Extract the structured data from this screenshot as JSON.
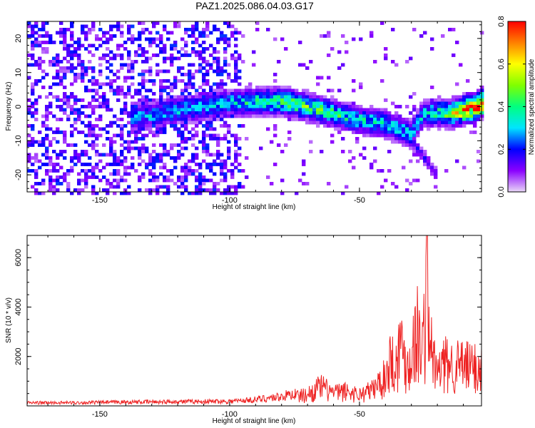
{
  "title": "PAZ1.2025.086.04.03.G17",
  "colorbar": {
    "label": "Normalized spectral amplitude",
    "range": [
      0,
      0.8
    ],
    "ticks": [
      "0.0",
      "0.2",
      "0.4",
      "0.6",
      "0.8"
    ],
    "colors": [
      "#e9d8f7",
      "#8a00ff",
      "#0000ff",
      "#00e5ff",
      "#00ff80",
      "#80ff00",
      "#ffff00",
      "#ff8000",
      "#ff0000"
    ]
  },
  "chart_data": [
    {
      "type": "heatmap",
      "xlabel": "Height of straight line (km)",
      "ylabel": "Frequency (Hz)",
      "xlim": [
        -178,
        -3
      ],
      "ylim": [
        -25,
        25
      ],
      "xticks": [
        -150,
        -100,
        -50
      ],
      "yticks": [
        -20,
        -10,
        0,
        10,
        20
      ],
      "ridge": {
        "x": [
          -135,
          -120,
          -110,
          -100,
          -90,
          -80,
          -70,
          -60,
          -50,
          -40,
          -30,
          -25,
          -20,
          -15,
          -10,
          -5,
          -3
        ],
        "frequency": [
          -3,
          -1,
          0,
          1,
          1.5,
          1.5,
          0,
          -2,
          -4,
          -5,
          -8,
          -2,
          -2,
          -2,
          -1,
          0,
          1
        ],
        "amplitude": [
          0.28,
          0.3,
          0.3,
          0.32,
          0.38,
          0.42,
          0.45,
          0.4,
          0.35,
          0.32,
          0.3,
          0.3,
          0.4,
          0.5,
          0.7,
          0.8,
          0.75
        ]
      },
      "secondary_branch": {
        "x": [
          -40,
          -30,
          -25,
          -20
        ],
        "frequency": [
          -5,
          -10,
          -15,
          -20
        ],
        "amplitude": [
          0.2,
          0.18,
          0.15,
          0.12
        ]
      },
      "noise_region": {
        "x_range": [
          -178,
          -95
        ],
        "amplitude": 0.15
      }
    },
    {
      "type": "line",
      "xlabel": "Height of straight line (km)",
      "ylabel": "SNR (10 * v/v)",
      "xlim": [
        -178,
        -3
      ],
      "ylim": [
        0,
        6900
      ],
      "xticks": [
        -150,
        -100,
        -50
      ],
      "yticks": [
        2000,
        4000,
        6000
      ],
      "color": "#ee2222",
      "series": [
        {
          "x": [
            -178,
            -160,
            -140,
            -120,
            -100,
            -90,
            -80,
            -70,
            -65,
            -60,
            -55,
            -50,
            -45,
            -40,
            -38,
            -36,
            -34,
            -32,
            -30,
            -28,
            -26,
            -24,
            -22,
            -20,
            -18,
            -16,
            -12,
            -8,
            -3
          ],
          "values": [
            150,
            150,
            180,
            200,
            220,
            300,
            450,
            700,
            1200,
            800,
            900,
            700,
            1000,
            1800,
            3000,
            2500,
            4000,
            2500,
            3000,
            4800,
            3200,
            6900,
            3000,
            2000,
            2500,
            2600,
            2500,
            2400,
            2400
          ]
        }
      ]
    }
  ]
}
